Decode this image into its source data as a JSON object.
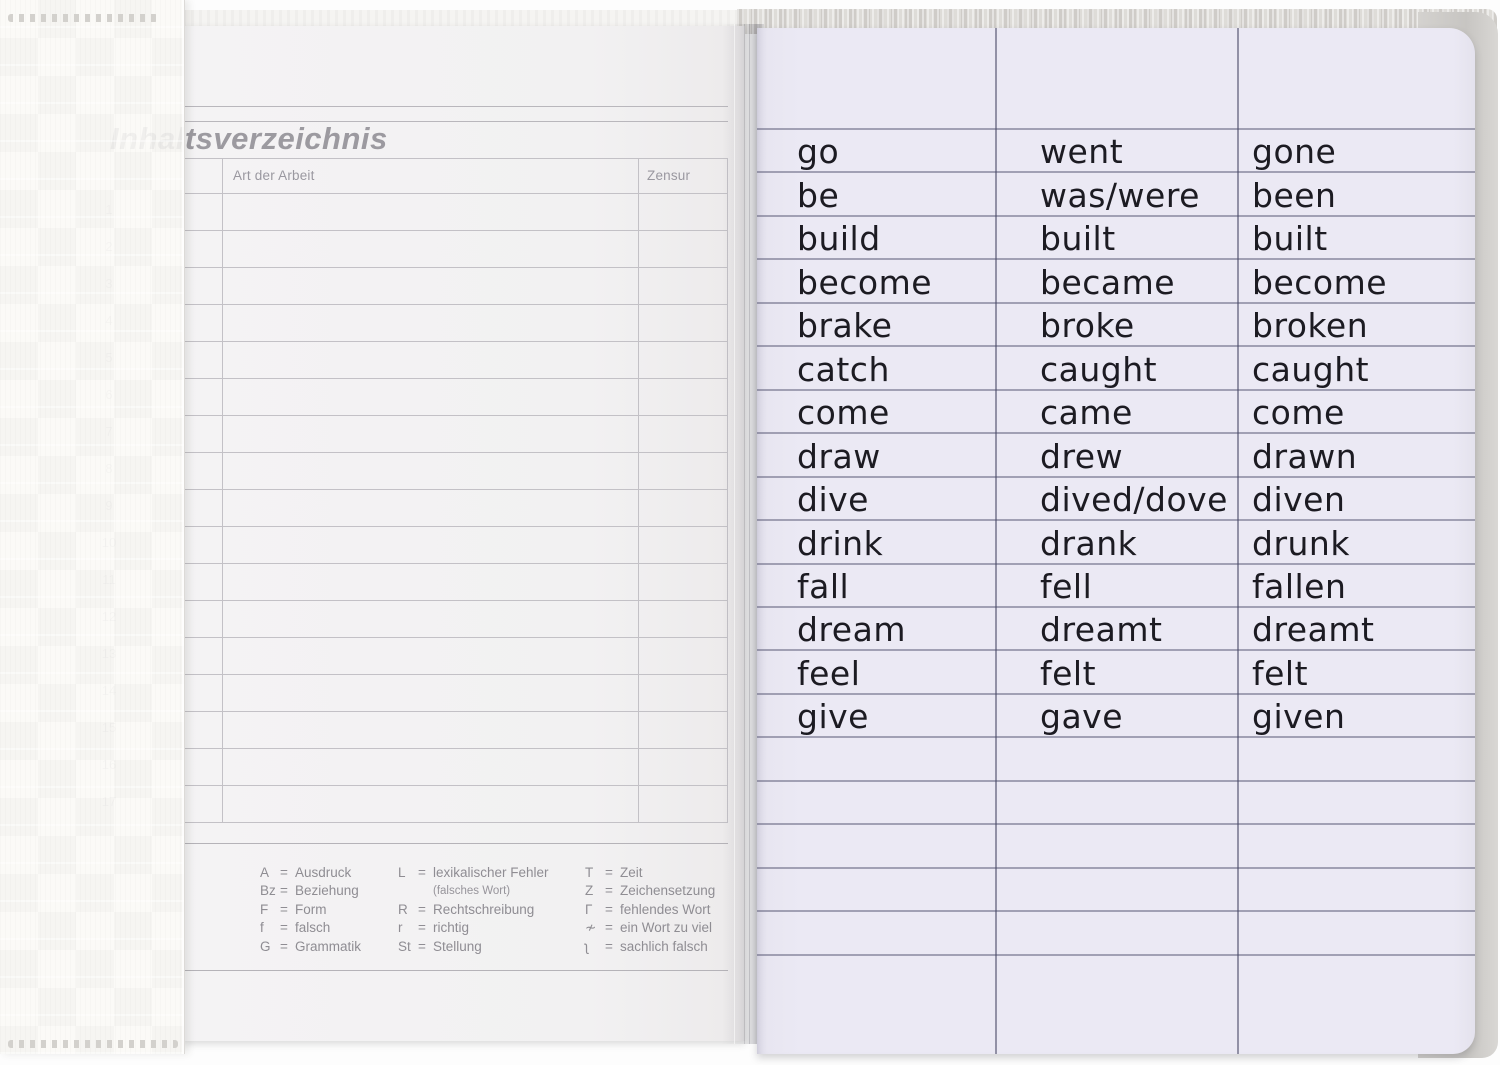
{
  "left_page": {
    "title": "Inhaltsverzeichnis",
    "table": {
      "col_headers": [
        "Art der Arbeit",
        "Zensur"
      ],
      "row_numbers": [
        "1",
        "2",
        "3",
        "4",
        "5",
        "6",
        "7",
        "8",
        "9",
        "10",
        "11",
        "12",
        "13",
        "14",
        "15",
        "16",
        "17"
      ]
    },
    "legend": {
      "columns": [
        {
          "items": [
            {
              "abbr": "A",
              "label": "Ausdruck"
            },
            {
              "abbr": "Bz",
              "label": "Beziehung"
            },
            {
              "abbr": "F",
              "label": "Form"
            },
            {
              "abbr": "f",
              "label": "falsch"
            },
            {
              "abbr": "G",
              "label": "Grammatik"
            }
          ]
        },
        {
          "items": [
            {
              "abbr": "L",
              "label": "lexikalischer Fehler"
            },
            {
              "abbr": null,
              "label": "(falsches Wort)",
              "small": true
            },
            {
              "abbr": "R",
              "label": "Rechtschreibung"
            },
            {
              "abbr": "r",
              "label": "richtig"
            },
            {
              "abbr": "St",
              "label": "Stellung"
            }
          ]
        },
        {
          "items": [
            {
              "abbr": "T",
              "label": "Zeit"
            },
            {
              "abbr": "Z",
              "label": "Zeichensetzung"
            },
            {
              "abbr": "Γ",
              "label": "fehlendes Wort"
            },
            {
              "abbr": "≁",
              "label": "ein Wort zu viel"
            },
            {
              "abbr": "ʅ",
              "label": "sachlich falsch"
            }
          ]
        }
      ]
    }
  },
  "right_page": {
    "verbs": [
      {
        "infinitive": "go",
        "simple_past": "went",
        "past_participle": "gone"
      },
      {
        "infinitive": "be",
        "simple_past": "was/were",
        "past_participle": "been"
      },
      {
        "infinitive": "build",
        "simple_past": "built",
        "past_participle": "built"
      },
      {
        "infinitive": "become",
        "simple_past": "became",
        "past_participle": "become"
      },
      {
        "infinitive": "brake",
        "simple_past": "broke",
        "past_participle": "broken"
      },
      {
        "infinitive": "catch",
        "simple_past": "caught",
        "past_participle": "caught"
      },
      {
        "infinitive": "come",
        "simple_past": "came",
        "past_participle": "come"
      },
      {
        "infinitive": "draw",
        "simple_past": "drew",
        "past_participle": "drawn"
      },
      {
        "infinitive": "dive",
        "simple_past": "dived/dove",
        "past_participle": "diven"
      },
      {
        "infinitive": "drink",
        "simple_past": "drank",
        "past_participle": "drunk"
      },
      {
        "infinitive": "fall",
        "simple_past": "fell",
        "past_participle": "fallen"
      },
      {
        "infinitive": "dream",
        "simple_past": "dreamt",
        "past_participle": "dreamt"
      },
      {
        "infinitive": "feel",
        "simple_past": "felt",
        "past_participle": "felt"
      },
      {
        "infinitive": "give",
        "simple_past": "gave",
        "past_participle": "given"
      }
    ]
  },
  "colors": {
    "left_paper": "#f2f1f2",
    "right_paper": "#ebe9f4",
    "left_rule": "#c3c1c6",
    "right_rule": "#585874",
    "ink": "#1c1b22",
    "print_grey": "#9a98a0",
    "cover": "#faf9f6",
    "cover_top_edge": "#d8d6d2"
  }
}
